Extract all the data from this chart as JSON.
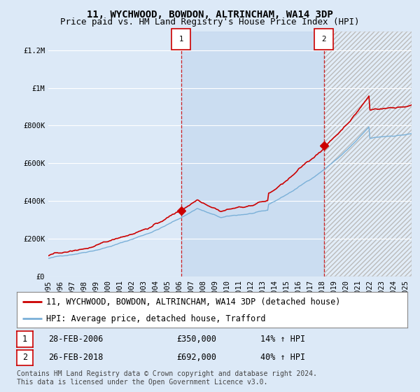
{
  "title": "11, WYCHWOOD, BOWDON, ALTRINCHAM, WA14 3DP",
  "subtitle": "Price paid vs. HM Land Registry's House Price Index (HPI)",
  "legend_line1": "11, WYCHWOOD, BOWDON, ALTRINCHAM, WA14 3DP (detached house)",
  "legend_line2": "HPI: Average price, detached house, Trafford",
  "annotation1_date": "28-FEB-2006",
  "annotation1_price": "£350,000",
  "annotation1_hpi": "14% ↑ HPI",
  "annotation1_year": 2006.15,
  "annotation1_value": 350000,
  "annotation2_date": "26-FEB-2018",
  "annotation2_price": "£692,000",
  "annotation2_hpi": "40% ↑ HPI",
  "annotation2_year": 2018.15,
  "annotation2_value": 692000,
  "ylabel_ticks": [
    "£0",
    "£200K",
    "£400K",
    "£600K",
    "£800K",
    "£1M",
    "£1.2M"
  ],
  "ytick_values": [
    0,
    200000,
    400000,
    600000,
    800000,
    1000000,
    1200000
  ],
  "ylim": [
    0,
    1300000
  ],
  "xlim_start": 1995,
  "xlim_end": 2025.5,
  "footer": "Contains HM Land Registry data © Crown copyright and database right 2024.\nThis data is licensed under the Open Government Licence v3.0.",
  "bg_color": "#dce9f7",
  "grid_color": "#ffffff",
  "hpi_line_color": "#7ab0d8",
  "price_line_color": "#cc0000",
  "vline_color": "#cc0000",
  "shade_color": "#c5d9ef",
  "title_fontsize": 10,
  "subtitle_fontsize": 9,
  "tick_fontsize": 7.5,
  "legend_fontsize": 8.5,
  "annot_fontsize": 8.5,
  "footer_fontsize": 7
}
